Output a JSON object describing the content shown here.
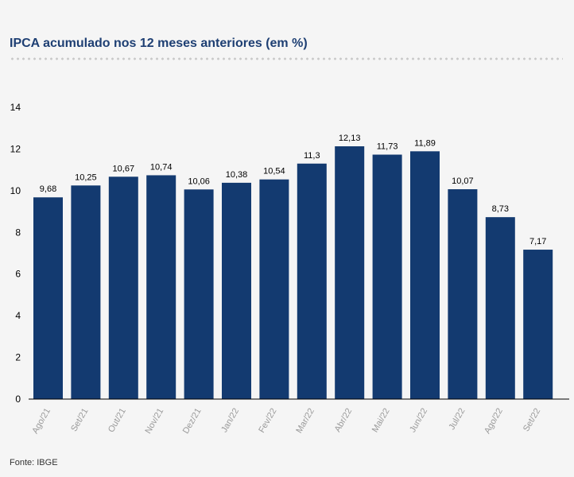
{
  "title": "IPCA acumulado nos 12 meses anteriores (em %)",
  "source": "Fonte: IBGE",
  "colors": {
    "bar": "#133a70",
    "title": "#1e3f73",
    "axis": "#000000",
    "tick_x": "#9a9a9a"
  },
  "chart_data": {
    "type": "bar",
    "title": "IPCA acumulado nos 12 meses anteriores (em %)",
    "xlabel": "",
    "ylabel": "",
    "ylim": [
      0,
      14
    ],
    "yticks": [
      0,
      2,
      4,
      6,
      8,
      10,
      12,
      14
    ],
    "grid": false,
    "categories": [
      "Ago/21",
      "Set/21",
      "Out/21",
      "Nov/21",
      "Dez/21",
      "Jan/22",
      "Fev/22",
      "Mar/22",
      "Abr/22",
      "Mai/22",
      "Jun/22",
      "Jul/22",
      "Ago/22",
      "Set/22"
    ],
    "values": [
      9.68,
      10.25,
      10.67,
      10.74,
      10.06,
      10.38,
      10.54,
      11.3,
      12.13,
      11.73,
      11.89,
      10.07,
      8.73,
      7.17
    ],
    "data_labels": [
      "9,68",
      "10,25",
      "10,67",
      "10,74",
      "10,06",
      "10,38",
      "10,54",
      "11,3",
      "12,13",
      "11,73",
      "11,89",
      "10,07",
      "8,73",
      "7,17"
    ]
  }
}
